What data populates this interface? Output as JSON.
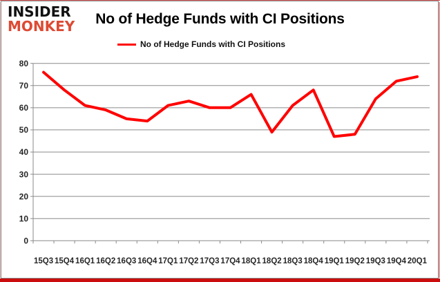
{
  "logo": {
    "line1": "INSIDER",
    "line2": "MONKEY"
  },
  "chart_data": {
    "type": "line",
    "title": "No of Hedge Funds with CI Positions",
    "legend_label": "No of Hedge Funds with CI Positions",
    "legend_position": "top",
    "categories": [
      "15Q3",
      "15Q4",
      "16Q1",
      "16Q2",
      "16Q3",
      "16Q4",
      "17Q1",
      "17Q2",
      "17Q3",
      "17Q4",
      "18Q1",
      "18Q2",
      "18Q3",
      "18Q4",
      "19Q1",
      "19Q2",
      "19Q3",
      "19Q4",
      "20Q1"
    ],
    "values": [
      76,
      68,
      61,
      59,
      55,
      54,
      61,
      63,
      60,
      60,
      66,
      49,
      61,
      68,
      47,
      48,
      64,
      72,
      74
    ],
    "xlabel": "",
    "ylabel": "",
    "ylim": [
      0,
      80
    ],
    "ytick_step": 10,
    "grid": true,
    "line_color": "#ff0000",
    "grid_color": "#8a8a8a"
  }
}
